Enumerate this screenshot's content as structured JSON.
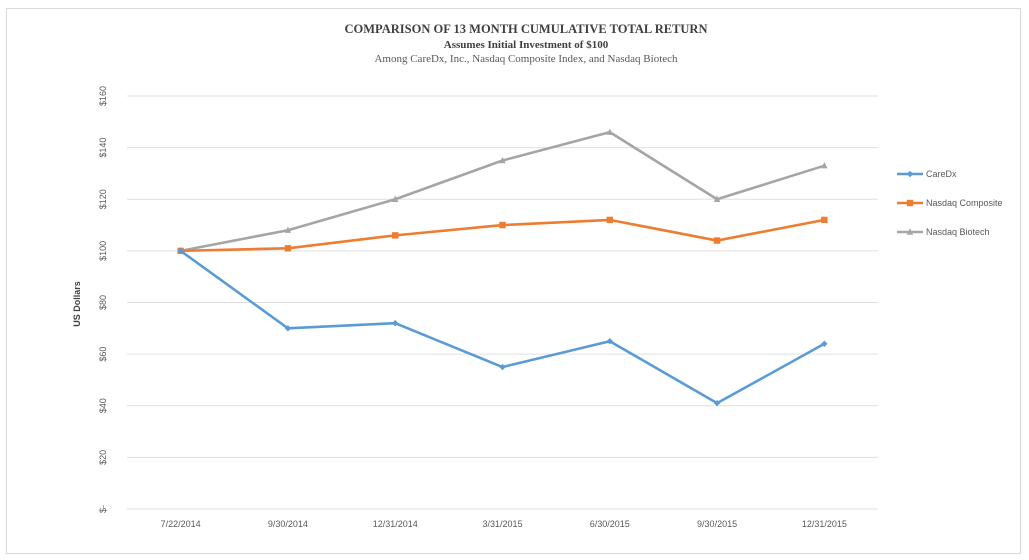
{
  "chart_data": {
    "type": "line",
    "title": "COMPARISON OF 13 MONTH CUMULATIVE TOTAL RETURN",
    "subtitle": "Assumes Initial Investment of $100",
    "subsubtitle": "Among CareDx, Inc., Nasdaq Composite Index, and Nasdaq Biotech",
    "xlabel": "",
    "ylabel": "US Dollars",
    "categories": [
      "7/22/2014",
      "9/30/2014",
      "12/31/2014",
      "3/31/2015",
      "6/30/2015",
      "9/30/2015",
      "12/31/2015"
    ],
    "y_ticks": [
      {
        "value": 0,
        "label": "$-"
      },
      {
        "value": 20,
        "label": "$20"
      },
      {
        "value": 40,
        "label": "$40"
      },
      {
        "value": 60,
        "label": "$60"
      },
      {
        "value": 80,
        "label": "$80"
      },
      {
        "value": 100,
        "label": "$100"
      },
      {
        "value": 120,
        "label": "$120"
      },
      {
        "value": 140,
        "label": "$140"
      },
      {
        "value": 160,
        "label": "$160"
      }
    ],
    "ylim": [
      0,
      160
    ],
    "grid": true,
    "legend_position": "right",
    "series": [
      {
        "name": "CareDx",
        "color": "#5b9bd5",
        "marker": "diamond",
        "values": [
          100,
          70,
          72,
          55,
          65,
          41,
          64
        ]
      },
      {
        "name": "Nasdaq Composite",
        "color": "#ed7d31",
        "marker": "square",
        "values": [
          100,
          101,
          106,
          110,
          112,
          104,
          112
        ]
      },
      {
        "name": "Nasdaq Biotech",
        "color": "#a5a5a5",
        "marker": "triangle",
        "values": [
          100,
          108,
          120,
          135,
          146,
          120,
          133
        ]
      }
    ]
  }
}
